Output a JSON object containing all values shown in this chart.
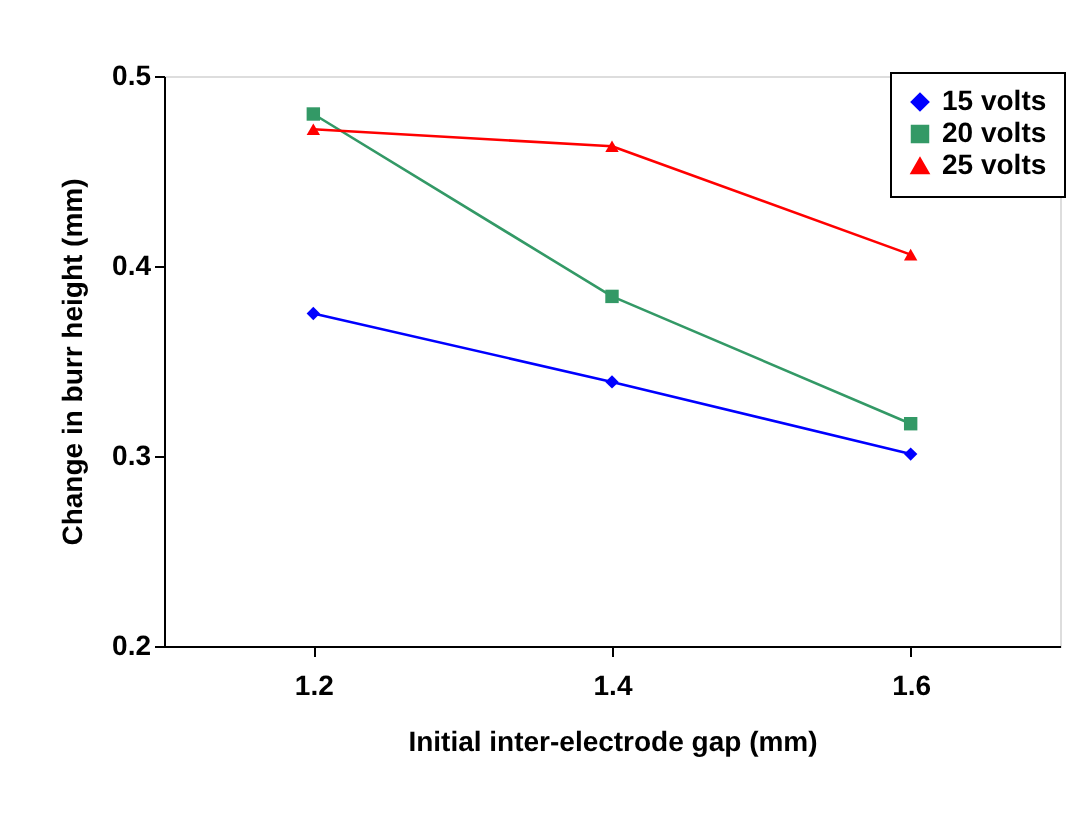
{
  "chart_data": {
    "type": "line",
    "xlabel": "Initial inter-electrode gap (mm)",
    "ylabel": "Change in burr height (mm)",
    "x": [
      1.2,
      1.4,
      1.6
    ],
    "xlim": [
      1.1,
      1.7
    ],
    "xticks": [
      1.2,
      1.4,
      1.6
    ],
    "ylim": [
      0.2,
      0.5
    ],
    "yticks": [
      0.2,
      0.3,
      0.4,
      0.5
    ],
    "grid": false,
    "legend": "top right",
    "line_style": "solid",
    "series": [
      {
        "name": "15 volts",
        "color": "#0000ff",
        "marker": "diamond",
        "values": [
          0.375,
          0.339,
          0.301
        ]
      },
      {
        "name": "20 volts",
        "color": "#339966",
        "marker": "square",
        "values": [
          0.48,
          0.384,
          0.317
        ]
      },
      {
        "name": "25 volts",
        "color": "#ff0000",
        "marker": "triangle",
        "values": [
          0.472,
          0.463,
          0.406
        ]
      }
    ]
  }
}
